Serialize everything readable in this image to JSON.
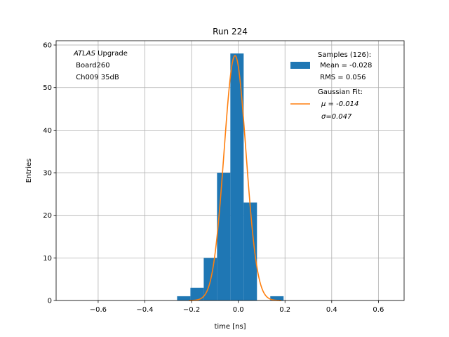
{
  "chart_data": {
    "type": "bar",
    "title": "Run 224",
    "xlabel": "time [ns]",
    "ylabel": "Entries",
    "xlim": [
      -0.78,
      0.71
    ],
    "ylim": [
      0,
      61
    ],
    "xticks": [
      -0.6,
      -0.4,
      -0.2,
      0.0,
      0.2,
      0.4,
      0.6
    ],
    "xtick_labels": [
      "−0.6",
      "−0.4",
      "−0.2",
      "0.0",
      "0.2",
      "0.4",
      "0.6"
    ],
    "yticks": [
      0,
      10,
      20,
      30,
      40,
      50,
      60
    ],
    "ytick_labels": [
      "0",
      "10",
      "20",
      "30",
      "40",
      "50",
      "60"
    ],
    "grid": true,
    "histogram": {
      "name": "Samples (126):",
      "color": "#1f77b4",
      "bins": [
        {
          "x0": -0.262,
          "x1": -0.205,
          "count": 1
        },
        {
          "x0": -0.205,
          "x1": -0.148,
          "count": 3
        },
        {
          "x0": -0.148,
          "x1": -0.091,
          "count": 10
        },
        {
          "x0": -0.091,
          "x1": -0.034,
          "count": 30
        },
        {
          "x0": -0.034,
          "x1": 0.023,
          "count": 58
        },
        {
          "x0": 0.023,
          "x1": 0.08,
          "count": 23
        },
        {
          "x0": 0.08,
          "x1": 0.137,
          "count": 0
        },
        {
          "x0": 0.137,
          "x1": 0.194,
          "count": 1
        }
      ],
      "mean_label": " Mean = -0.028",
      "rms_label": " RMS = 0.056"
    },
    "fit": {
      "name": "Gaussian Fit:",
      "color": "#ff7f0e",
      "amplitude": 57.5,
      "mu": -0.014,
      "sigma": 0.047,
      "mu_label": "μ = -0.014",
      "sigma_label": "σ=0.047"
    },
    "legend_position": "top-right",
    "annotation": {
      "line1_italic": "ATLAS",
      "line1_rest": " Upgrade",
      "line2": " Board260",
      "line3": " Ch009 35dB"
    }
  }
}
